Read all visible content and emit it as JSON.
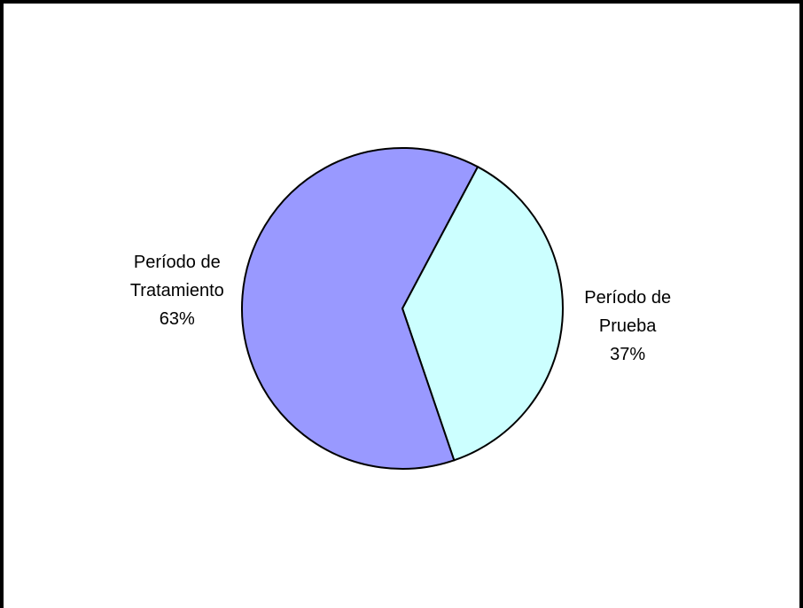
{
  "chart_data": {
    "type": "pie",
    "categories": [
      "Período de Prueba",
      "Período de Tratamiento"
    ],
    "values": [
      37,
      63
    ],
    "value_labels": [
      "37%",
      "63%"
    ],
    "colors": [
      "#ccffff",
      "#9999ff"
    ]
  }
}
